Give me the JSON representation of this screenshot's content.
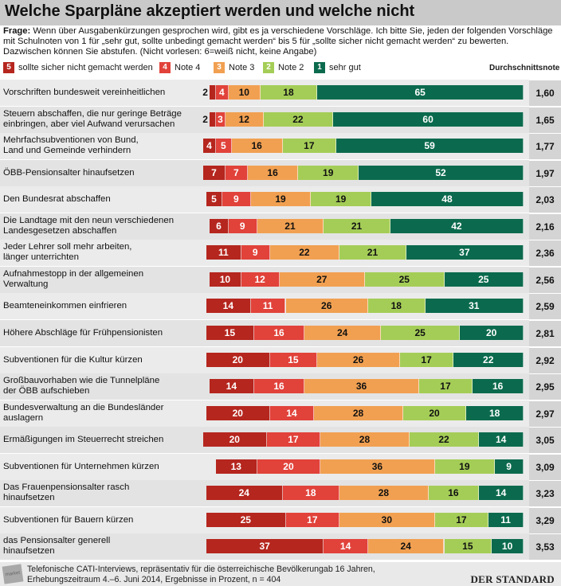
{
  "title": "Welche Sparpläne akzeptiert werden und welche nicht",
  "question": {
    "label": "Frage:",
    "text": "Wenn über Ausgabenkürzungen gesprochen wird, gibt es ja verschiedene Vorschläge. Ich bitte Sie, jeden der folgenden Vorschläge mit Schulnoten von 1 für „sehr gut, sollte unbedingt gemacht werden“ bis 5 für „sollte sicher nicht gemacht werden“ zu bewerten. Dazwischen können Sie abstufen. (Nicht vorlesen: 6=weiß nicht, keine Angabe)"
  },
  "colors": {
    "note5": "#b5261e",
    "note4": "#e1423a",
    "note3": "#f1a051",
    "note2": "#a4cd57",
    "note1": "#0b6a4d",
    "label_dark": "#ffffff",
    "label_light": "#111111"
  },
  "chart_data": {
    "type": "bar",
    "stacked": true,
    "orientation": "horizontal",
    "legend": [
      {
        "key": "5",
        "label": "sollte sicher nicht gemacht werden"
      },
      {
        "key": "4",
        "label": "Note 4"
      },
      {
        "key": "3",
        "label": "Note 3"
      },
      {
        "key": "2",
        "label": "Note 2"
      },
      {
        "key": "1",
        "label": "sehr gut"
      }
    ],
    "avg_header": "Durchschnittsnote",
    "categories": [
      "Vorschriften bundesweit vereinheitlichen",
      "Steuern abschaffen, die nur geringe Beträge\neinbringen, aber viel  Aufwand verursachen",
      "Mehrfachsubventionen von Bund,\nLand und Gemeinde verhindern",
      "ÖBB-Pensionsalter hinaufsetzen",
      "Den Bundesrat abschaffen",
      "Die Landtage mit den neun verschiedenen\nLandesgesetzen abschaffen",
      "Jeder Lehrer soll mehr arbeiten,\nlänger unterrichten",
      "Aufnahmestopp in der allgemeinen\nVerwaltung",
      "Beamteneinkommen einfrieren",
      "Höhere Abschläge für Frühpensionisten",
      "Subventionen für die Kultur kürzen",
      "Großbauvorhaben wie die Tunnelpläne\nder ÖBB aufschieben",
      "Bundesverwaltung an die Bundesländer\nauslagern",
      "Ermäßigungen im Steuerrecht streichen",
      "Subventionen für Unternehmen kürzen",
      "Das Frauenpensionsalter rasch\nhinaufsetzen",
      "Subventionen für Bauern kürzen",
      "das Pensionsalter generell\nhinaufsetzen"
    ],
    "series": [
      {
        "name": "sollte sicher nicht gemacht werden",
        "key": "5",
        "values": [
          2,
          2,
          4,
          7,
          5,
          6,
          11,
          10,
          14,
          15,
          20,
          14,
          20,
          20,
          13,
          24,
          25,
          37
        ]
      },
      {
        "name": "Note 4",
        "key": "4",
        "values": [
          4,
          3,
          5,
          7,
          9,
          9,
          9,
          12,
          11,
          16,
          15,
          16,
          14,
          17,
          20,
          18,
          17,
          14
        ]
      },
      {
        "name": "Note 3",
        "key": "3",
        "values": [
          10,
          12,
          16,
          16,
          19,
          21,
          22,
          27,
          26,
          24,
          26,
          36,
          28,
          28,
          36,
          28,
          30,
          24
        ]
      },
      {
        "name": "Note 2",
        "key": "2",
        "values": [
          18,
          22,
          17,
          19,
          19,
          21,
          21,
          25,
          18,
          25,
          17,
          17,
          20,
          22,
          19,
          16,
          17,
          15
        ]
      },
      {
        "name": "sehr gut",
        "key": "1",
        "values": [
          65,
          60,
          59,
          52,
          48,
          42,
          37,
          25,
          31,
          20,
          22,
          16,
          18,
          14,
          9,
          14,
          11,
          10
        ]
      }
    ],
    "averages": [
      "1,60",
      "1,65",
      "1,77",
      "1,97",
      "2,03",
      "2,16",
      "2,36",
      "2,56",
      "2,59",
      "2,81",
      "2,92",
      "2,95",
      "2,97",
      "3,05",
      "3,09",
      "3,23",
      "3,29",
      "3,53"
    ]
  },
  "footer": {
    "stamp": "market",
    "note_line1": "Telefonische CATI-Interviews, repräsentativ für die österreichische Bevölkerungab 16 Jahren,",
    "note_line2": "Erhebungszeitraum 4.–6. Juni 2014, Ergebnisse in Prozent, n = 404",
    "brand": "DER STANDARD"
  }
}
